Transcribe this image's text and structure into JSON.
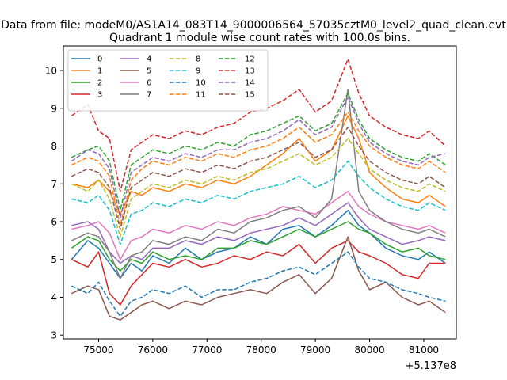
{
  "figure": {
    "suptitle": "Data from file: modeM0/AS1A14_083T14_9000006564_57035cztM0_level2_quad_clean.evt",
    "title": "Quadrant 1 module wise count rates with 100.0s bins.",
    "offset_label": "+5.137e8"
  },
  "chart_data": {
    "type": "line",
    "title": "Quadrant 1 module wise count rates with 100.0s bins.",
    "xlabel": "",
    "ylabel": "",
    "xlim": [
      74350,
      81600
    ],
    "ylim": [
      2.9,
      10.65
    ],
    "x_offset": 513700000,
    "xticks": [
      75000,
      76000,
      77000,
      78000,
      79000,
      80000,
      81000
    ],
    "xtick_labels": [
      "75000",
      "76000",
      "77000",
      "78000",
      "79000",
      "80000",
      "81000"
    ],
    "yticks": [
      3,
      4,
      5,
      6,
      7,
      8,
      9,
      10
    ],
    "ytick_labels": [
      "3",
      "4",
      "5",
      "6",
      "7",
      "8",
      "9",
      "10"
    ],
    "legend_position": "upper-left",
    "legend_columns": 4,
    "series": [
      {
        "name": "0",
        "color": "#1f77b4",
        "dash": "solid",
        "x": [
          74500,
          74800,
          75000,
          75200,
          75400,
          75600,
          75800,
          76000,
          76300,
          76600,
          76900,
          77200,
          77500,
          77800,
          78100,
          78400,
          78700,
          79000,
          79300,
          79600,
          79800,
          80000,
          80300,
          80600,
          80900,
          81100,
          81400
        ],
        "y": [
          5.0,
          5.5,
          5.3,
          4.9,
          4.5,
          4.9,
          4.7,
          5.1,
          4.9,
          5.3,
          5.0,
          5.2,
          5.3,
          5.6,
          5.4,
          5.8,
          5.9,
          5.6,
          5.9,
          6.3,
          5.9,
          5.7,
          5.3,
          5.1,
          5.0,
          5.2,
          4.9
        ]
      },
      {
        "name": "1",
        "color": "#ff7f0e",
        "dash": "solid",
        "x": [
          74500,
          74800,
          75000,
          75200,
          75400,
          75600,
          75800,
          76000,
          76300,
          76600,
          76900,
          77200,
          77500,
          77800,
          78100,
          78400,
          78700,
          79000,
          79300,
          79600,
          79800,
          80000,
          80300,
          80600,
          80900,
          81100,
          81400
        ],
        "y": [
          7.0,
          6.9,
          7.1,
          6.8,
          6.2,
          6.8,
          6.7,
          6.9,
          6.8,
          7.0,
          6.9,
          7.1,
          7.0,
          7.2,
          7.5,
          7.8,
          8.2,
          7.6,
          7.9,
          8.8,
          8.2,
          7.3,
          6.9,
          6.6,
          6.5,
          6.7,
          6.4
        ]
      },
      {
        "name": "2",
        "color": "#2ca02c",
        "dash": "solid",
        "x": [
          74500,
          74800,
          75000,
          75200,
          75400,
          75600,
          75800,
          76000,
          76300,
          76600,
          76900,
          77200,
          77500,
          77800,
          78100,
          78400,
          78700,
          79000,
          79300,
          79600,
          79800,
          80000,
          80300,
          80600,
          80900,
          81100,
          81400
        ],
        "y": [
          5.3,
          5.6,
          5.5,
          5.0,
          4.7,
          5.0,
          4.9,
          5.2,
          5.0,
          5.1,
          5.0,
          5.3,
          5.3,
          5.5,
          5.4,
          5.6,
          5.8,
          5.6,
          5.8,
          6.0,
          5.8,
          5.7,
          5.4,
          5.2,
          5.3,
          5.1,
          5.0
        ]
      },
      {
        "name": "3",
        "color": "#d62728",
        "dash": "solid",
        "x": [
          74500,
          74800,
          75000,
          75200,
          75400,
          75600,
          75800,
          76000,
          76300,
          76600,
          76900,
          77200,
          77500,
          77800,
          78100,
          78400,
          78700,
          79000,
          79300,
          79600,
          79800,
          80000,
          80300,
          80600,
          80900,
          81100,
          81400
        ],
        "y": [
          5.0,
          4.8,
          5.2,
          4.1,
          3.8,
          4.3,
          4.6,
          4.9,
          4.8,
          5.0,
          4.8,
          4.9,
          5.1,
          5.0,
          5.2,
          5.1,
          5.4,
          4.9,
          5.3,
          5.5,
          5.2,
          5.1,
          4.9,
          4.6,
          4.5,
          4.9,
          4.9
        ]
      },
      {
        "name": "4",
        "color": "#9467bd",
        "dash": "solid",
        "x": [
          74500,
          74800,
          75000,
          75200,
          75400,
          75600,
          75800,
          76000,
          76300,
          76600,
          76900,
          77200,
          77500,
          77800,
          78100,
          78400,
          78700,
          79000,
          79300,
          79600,
          79800,
          80000,
          80300,
          80600,
          80900,
          81100,
          81400
        ],
        "y": [
          5.9,
          6.0,
          5.8,
          5.2,
          4.9,
          5.1,
          5.0,
          5.3,
          5.3,
          5.5,
          5.4,
          5.6,
          5.5,
          5.7,
          5.8,
          5.9,
          6.1,
          5.9,
          6.2,
          6.5,
          6.1,
          5.8,
          5.6,
          5.4,
          5.5,
          5.6,
          5.5
        ]
      },
      {
        "name": "5",
        "color": "#8c564b",
        "dash": "solid",
        "x": [
          74500,
          74800,
          75000,
          75200,
          75400,
          75600,
          75800,
          76000,
          76300,
          76600,
          76900,
          77200,
          77500,
          77800,
          78100,
          78400,
          78700,
          79000,
          79300,
          79600,
          79800,
          80000,
          80300,
          80600,
          80900,
          81100,
          81400
        ],
        "y": [
          4.1,
          4.3,
          4.2,
          3.5,
          3.4,
          3.6,
          3.8,
          3.9,
          3.7,
          3.9,
          3.8,
          4.0,
          4.1,
          4.2,
          4.1,
          4.4,
          4.6,
          4.1,
          4.5,
          5.6,
          4.7,
          4.2,
          4.4,
          4.0,
          3.8,
          3.9,
          3.6
        ]
      },
      {
        "name": "6",
        "color": "#e377c2",
        "dash": "solid",
        "x": [
          74500,
          74800,
          75000,
          75200,
          75400,
          75600,
          75800,
          76000,
          76300,
          76600,
          76900,
          77200,
          77500,
          77800,
          78100,
          78400,
          78700,
          79000,
          79300,
          79600,
          79800,
          80000,
          80300,
          80600,
          80900,
          81100,
          81400
        ],
        "y": [
          5.8,
          5.9,
          6.0,
          5.7,
          5.0,
          5.5,
          5.6,
          5.8,
          5.7,
          5.9,
          5.8,
          6.0,
          5.9,
          6.1,
          6.2,
          6.4,
          6.3,
          6.2,
          6.5,
          6.8,
          6.4,
          6.2,
          6.0,
          5.9,
          5.8,
          5.9,
          5.7
        ]
      },
      {
        "name": "7",
        "color": "#7f7f7f",
        "dash": "solid",
        "x": [
          74500,
          74800,
          75000,
          75200,
          75400,
          75600,
          75800,
          76000,
          76300,
          76600,
          76900,
          77200,
          77500,
          77800,
          78100,
          78400,
          78700,
          79000,
          79300,
          79600,
          79800,
          80000,
          80300,
          80600,
          80900,
          81100,
          81400
        ],
        "y": [
          5.5,
          5.7,
          5.6,
          5.2,
          4.5,
          5.1,
          5.2,
          5.5,
          5.4,
          5.6,
          5.5,
          5.8,
          5.7,
          6.0,
          6.1,
          6.3,
          6.4,
          6.1,
          6.6,
          9.5,
          6.8,
          6.3,
          6.0,
          5.8,
          5.7,
          5.8,
          5.6
        ]
      },
      {
        "name": "8",
        "color": "#bcbd22",
        "dash": "dashed",
        "x": [
          74500,
          74800,
          75000,
          75200,
          75400,
          75600,
          75800,
          76000,
          76300,
          76600,
          76900,
          77200,
          77500,
          77800,
          78100,
          78400,
          78700,
          79000,
          79300,
          79600,
          79800,
          80000,
          80300,
          80600,
          80900,
          81100,
          81400
        ],
        "y": [
          7.0,
          6.8,
          7.1,
          6.6,
          5.6,
          6.6,
          6.8,
          7.0,
          6.9,
          7.1,
          7.0,
          7.2,
          7.1,
          7.3,
          7.4,
          7.6,
          7.8,
          7.5,
          7.7,
          8.2,
          7.8,
          7.4,
          7.1,
          6.9,
          6.8,
          7.0,
          6.8
        ]
      },
      {
        "name": "9",
        "color": "#17becf",
        "dash": "dashed",
        "x": [
          74500,
          74800,
          75000,
          75200,
          75400,
          75600,
          75800,
          76000,
          76300,
          76600,
          76900,
          77200,
          77500,
          77800,
          78100,
          78400,
          78700,
          79000,
          79300,
          79600,
          79800,
          80000,
          80300,
          80600,
          80900,
          81100,
          81400
        ],
        "y": [
          6.6,
          6.5,
          6.7,
          6.3,
          5.4,
          6.2,
          6.3,
          6.5,
          6.4,
          6.6,
          6.5,
          6.7,
          6.6,
          6.8,
          6.9,
          7.0,
          7.2,
          6.9,
          7.1,
          7.6,
          7.2,
          6.9,
          6.6,
          6.4,
          6.3,
          6.5,
          6.3
        ]
      },
      {
        "name": "10",
        "color": "#1f77b4",
        "dash": "dashed",
        "x": [
          74500,
          74800,
          75000,
          75200,
          75400,
          75600,
          75800,
          76000,
          76300,
          76600,
          76900,
          77200,
          77500,
          77800,
          78100,
          78400,
          78700,
          79000,
          79300,
          79600,
          79800,
          80000,
          80300,
          80600,
          80900,
          81100,
          81400
        ],
        "y": [
          4.3,
          4.1,
          4.4,
          3.9,
          3.5,
          3.9,
          4.0,
          4.2,
          4.1,
          4.3,
          4.0,
          4.2,
          4.2,
          4.4,
          4.5,
          4.7,
          4.8,
          4.6,
          4.9,
          5.2,
          4.8,
          4.5,
          4.4,
          4.2,
          4.1,
          4.0,
          3.9
        ]
      },
      {
        "name": "11",
        "color": "#ff7f0e",
        "dash": "dashed",
        "x": [
          74500,
          74800,
          75000,
          75200,
          75400,
          75600,
          75800,
          76000,
          76300,
          76600,
          76900,
          77200,
          77500,
          77800,
          78100,
          78400,
          78700,
          79000,
          79300,
          79600,
          79800,
          80000,
          80300,
          80600,
          80900,
          81100,
          81400
        ],
        "y": [
          7.5,
          7.7,
          7.6,
          7.2,
          5.9,
          7.1,
          7.4,
          7.6,
          7.5,
          7.7,
          7.6,
          7.8,
          7.7,
          7.9,
          8.0,
          8.2,
          8.5,
          8.1,
          8.3,
          8.9,
          8.4,
          8.0,
          7.7,
          7.5,
          7.4,
          7.6,
          7.3
        ]
      },
      {
        "name": "12",
        "color": "#2ca02c",
        "dash": "dashed",
        "x": [
          74500,
          74800,
          75000,
          75200,
          75400,
          75600,
          75800,
          76000,
          76300,
          76600,
          76900,
          77200,
          77500,
          77800,
          78100,
          78400,
          78700,
          79000,
          79300,
          79600,
          79800,
          80000,
          80300,
          80600,
          80900,
          81100,
          81400
        ],
        "y": [
          7.7,
          7.9,
          8.0,
          7.6,
          6.3,
          7.5,
          7.7,
          7.9,
          7.8,
          8.0,
          7.9,
          8.1,
          8.0,
          8.3,
          8.4,
          8.6,
          8.8,
          8.4,
          8.6,
          9.4,
          8.7,
          8.2,
          7.9,
          7.7,
          7.6,
          7.8,
          7.5
        ]
      },
      {
        "name": "13",
        "color": "#d62728",
        "dash": "dashed",
        "x": [
          74500,
          74800,
          75000,
          75200,
          75400,
          75600,
          75800,
          76000,
          76300,
          76600,
          76900,
          77200,
          77500,
          77800,
          78100,
          78400,
          78700,
          79000,
          79300,
          79600,
          79800,
          80000,
          80300,
          80600,
          80900,
          81100,
          81400
        ],
        "y": [
          8.8,
          9.1,
          8.4,
          8.2,
          6.8,
          7.9,
          8.1,
          8.3,
          8.2,
          8.4,
          8.3,
          8.5,
          8.6,
          8.9,
          9.0,
          9.2,
          9.5,
          8.9,
          9.2,
          10.3,
          9.4,
          8.8,
          8.5,
          8.3,
          8.2,
          8.4,
          8.0
        ]
      },
      {
        "name": "14",
        "color": "#9467bd",
        "dash": "dashed",
        "x": [
          74500,
          74800,
          75000,
          75200,
          75400,
          75600,
          75800,
          76000,
          76300,
          76600,
          76900,
          77200,
          77500,
          77800,
          78100,
          78400,
          78700,
          79000,
          79300,
          79600,
          79800,
          80000,
          80300,
          80600,
          80900,
          81100,
          81400
        ],
        "y": [
          7.6,
          7.9,
          7.8,
          7.4,
          6.1,
          7.3,
          7.5,
          7.7,
          7.6,
          7.8,
          7.7,
          7.9,
          7.9,
          8.1,
          8.2,
          8.4,
          8.7,
          8.3,
          8.5,
          9.3,
          8.6,
          8.1,
          7.8,
          7.6,
          7.5,
          7.7,
          7.8
        ]
      },
      {
        "name": "15",
        "color": "#8c564b",
        "dash": "dashed",
        "x": [
          74500,
          74800,
          75000,
          75200,
          75400,
          75600,
          75800,
          76000,
          76300,
          76600,
          76900,
          77200,
          77500,
          77800,
          78100,
          78400,
          78700,
          79000,
          79300,
          79600,
          79800,
          80000,
          80300,
          80600,
          80900,
          81100,
          81400
        ],
        "y": [
          7.2,
          7.4,
          7.3,
          6.9,
          5.8,
          6.9,
          7.1,
          7.3,
          7.2,
          7.4,
          7.3,
          7.5,
          7.4,
          7.6,
          7.7,
          7.9,
          8.1,
          7.7,
          7.9,
          8.5,
          8.0,
          7.6,
          7.3,
          7.1,
          7.0,
          7.2,
          6.9
        ]
      }
    ]
  }
}
